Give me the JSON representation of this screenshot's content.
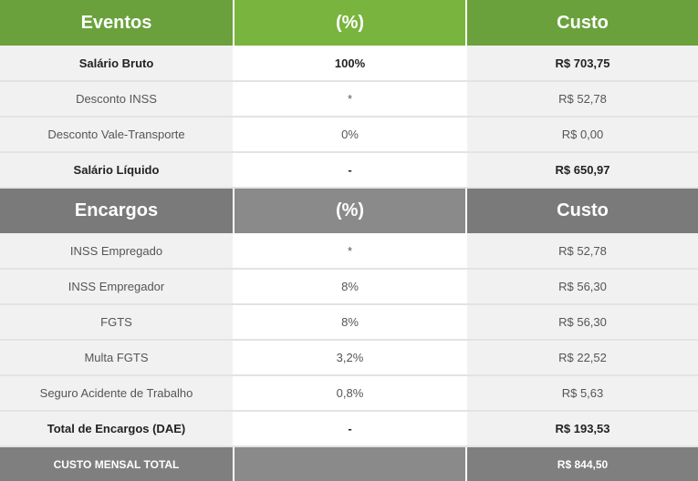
{
  "eventos": {
    "headers": [
      "Eventos",
      "(%)",
      "Custo"
    ],
    "rows": [
      {
        "label": "Salário Bruto",
        "pct": "100%",
        "cost": "R$ 703,75"
      },
      {
        "label": "Desconto INSS",
        "pct": "*",
        "cost": "R$ 52,78"
      },
      {
        "label": "Desconto Vale-Transporte",
        "pct": "0%",
        "cost": "R$ 0,00"
      },
      {
        "label": "Salário Líquido",
        "pct": "-",
        "cost": "R$ 650,97"
      }
    ]
  },
  "encargos": {
    "headers": [
      "Encargos",
      "(%)",
      "Custo"
    ],
    "rows": [
      {
        "label": "INSS Empregado",
        "pct": "*",
        "cost": "R$ 52,78"
      },
      {
        "label": "INSS Empregador",
        "pct": "8%",
        "cost": "R$ 56,30"
      },
      {
        "label": "FGTS",
        "pct": "8%",
        "cost": "R$ 56,30"
      },
      {
        "label": "Multa FGTS",
        "pct": "3,2%",
        "cost": "R$ 22,52"
      },
      {
        "label": "Seguro Acidente de Trabalho",
        "pct": "0,8%",
        "cost": "R$ 5,63"
      },
      {
        "label": "Total de Encargos (DAE)",
        "pct": "-",
        "cost": "R$ 193,53"
      }
    ]
  },
  "total": {
    "label": "CUSTO MENSAL TOTAL",
    "pct": "",
    "cost": "R$ 844,50"
  },
  "colors": {
    "green_header": "#6aa13c",
    "green_header_mid": "#78b43e",
    "gray_header": "#7a7a7a",
    "row_gray": "#f1f1f1"
  }
}
